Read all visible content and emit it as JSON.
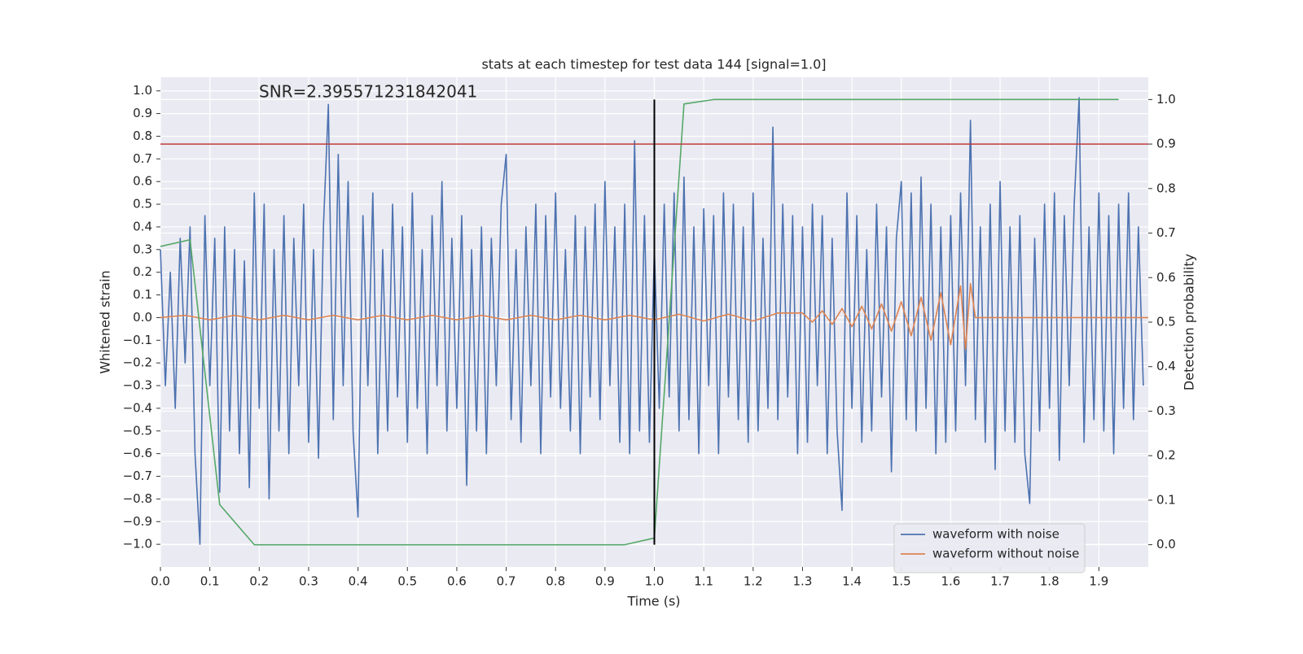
{
  "chart_data": {
    "type": "line",
    "title": "stats at each timestep for test data 144 [signal=1.0]",
    "annotation": "SNR=2.395571231842041",
    "xlabel": "Time (s)",
    "ylabel": "Whitened strain",
    "y2label": "Detection probability",
    "xlim": [
      0,
      2.0
    ],
    "ylim": [
      -1.1,
      1.06
    ],
    "y2lim": [
      -0.05,
      1.05
    ],
    "grid": true,
    "legend": "lower right",
    "xticks": [
      {
        "value": 0,
        "label": "0.0"
      },
      0.1,
      0.2,
      0.3,
      0.4,
      0.5,
      0.6,
      0.7,
      0.8,
      0.9,
      {
        "value": 1,
        "label": "1.0"
      },
      1.1,
      1.2,
      1.3,
      1.4,
      1.5,
      1.6,
      1.7,
      1.8,
      1.9
    ],
    "yticks": [
      {
        "value": -1,
        "label": "−1.0"
      },
      {
        "value": -0.9,
        "label": "−0.9"
      },
      {
        "value": -0.8,
        "label": "−0.8"
      },
      {
        "value": -0.7,
        "label": "−0.7"
      },
      {
        "value": -0.6,
        "label": "−0.6"
      },
      {
        "value": -0.5,
        "label": "−0.5"
      },
      {
        "value": -0.4,
        "label": "−0.4"
      },
      {
        "value": -0.3,
        "label": "−0.3"
      },
      {
        "value": -0.2,
        "label": "−0.2"
      },
      {
        "value": -0.1,
        "label": "−0.1"
      },
      {
        "value": 0,
        "label": "0.0"
      },
      0.1,
      0.2,
      0.3,
      0.4,
      0.5,
      0.6,
      0.7,
      0.8,
      0.9,
      {
        "value": 1,
        "label": "1.0"
      }
    ],
    "y2ticks": [
      {
        "value": 0,
        "label": "0.0"
      },
      0.1,
      0.2,
      0.3,
      0.4,
      0.5,
      0.6,
      0.7,
      0.8,
      0.9,
      {
        "value": 1,
        "label": "1.0"
      }
    ],
    "hline": {
      "y": 0.9,
      "axis": "y2",
      "color": "#c03a3a"
    },
    "vline": {
      "x": 1.0,
      "ymin": 0,
      "ymax": 1,
      "axis": "y2",
      "color": "#000000"
    },
    "series": [
      {
        "name": "waveform with noise",
        "color": "#4c72b0",
        "x": [
          0,
          0.01,
          0.02,
          0.03,
          0.04,
          0.05,
          0.06,
          0.07,
          0.08,
          0.09,
          0.1,
          0.11,
          0.12,
          0.13,
          0.14,
          0.15,
          0.16,
          0.17,
          0.18,
          0.19,
          0.2,
          0.21,
          0.22,
          0.23,
          0.24,
          0.25,
          0.26,
          0.27,
          0.28,
          0.29,
          0.3,
          0.31,
          0.32,
          0.33,
          0.34,
          0.35,
          0.36,
          0.37,
          0.38,
          0.39,
          0.4,
          0.41,
          0.42,
          0.43,
          0.44,
          0.45,
          0.46,
          0.47,
          0.48,
          0.49,
          0.5,
          0.51,
          0.52,
          0.53,
          0.54,
          0.55,
          0.56,
          0.57,
          0.58,
          0.59,
          0.6,
          0.61,
          0.62,
          0.63,
          0.64,
          0.65,
          0.66,
          0.67,
          0.68,
          0.69,
          0.7,
          0.71,
          0.72,
          0.73,
          0.74,
          0.75,
          0.76,
          0.77,
          0.78,
          0.79,
          0.8,
          0.81,
          0.82,
          0.83,
          0.84,
          0.85,
          0.86,
          0.87,
          0.88,
          0.89,
          0.9,
          0.91,
          0.92,
          0.93,
          0.94,
          0.95,
          0.96,
          0.97,
          0.98,
          0.99,
          1,
          1.01,
          1.02,
          1.03,
          1.04,
          1.05,
          1.06,
          1.07,
          1.08,
          1.09,
          1.1,
          1.11,
          1.12,
          1.13,
          1.14,
          1.15,
          1.16,
          1.17,
          1.18,
          1.19,
          1.2,
          1.21,
          1.22,
          1.23,
          1.24,
          1.25,
          1.26,
          1.27,
          1.28,
          1.29,
          1.3,
          1.31,
          1.32,
          1.33,
          1.34,
          1.35,
          1.36,
          1.37,
          1.38,
          1.39,
          1.4,
          1.41,
          1.42,
          1.43,
          1.44,
          1.45,
          1.46,
          1.47,
          1.48,
          1.49,
          1.5,
          1.51,
          1.52,
          1.53,
          1.54,
          1.55,
          1.56,
          1.57,
          1.58,
          1.59,
          1.6,
          1.61,
          1.62,
          1.63,
          1.64,
          1.65,
          1.66,
          1.67,
          1.68,
          1.69,
          1.7,
          1.71,
          1.72,
          1.73,
          1.74,
          1.75,
          1.76,
          1.77,
          1.78,
          1.79,
          1.8,
          1.81,
          1.82,
          1.83,
          1.84,
          1.85,
          1.86,
          1.87,
          1.88,
          1.89,
          1.9,
          1.91,
          1.92,
          1.93,
          1.94,
          1.95,
          1.96,
          1.97,
          1.98,
          1.99
        ],
        "values": [
          0.3,
          -0.3,
          0.2,
          -0.4,
          0.35,
          -0.2,
          0.4,
          -0.6,
          -1.0,
          0.45,
          -0.3,
          0.35,
          -0.77,
          0.4,
          -0.5,
          0.3,
          -0.6,
          0.25,
          -0.75,
          0.55,
          -0.4,
          0.5,
          -0.8,
          0.3,
          -0.5,
          0.45,
          -0.6,
          0.35,
          -0.3,
          0.5,
          -0.55,
          0.3,
          -0.62,
          0.4,
          0.94,
          -0.45,
          0.72,
          -0.3,
          0.6,
          -0.5,
          -0.88,
          0.45,
          -0.3,
          0.55,
          -0.6,
          0.3,
          -0.5,
          0.5,
          -0.35,
          0.4,
          -0.55,
          0.55,
          -0.4,
          0.3,
          -0.6,
          0.45,
          -0.3,
          0.6,
          -0.5,
          0.35,
          -0.4,
          0.45,
          -0.74,
          0.3,
          -0.5,
          0.4,
          -0.6,
          0.35,
          -0.3,
          0.5,
          0.72,
          -0.45,
          0.3,
          -0.55,
          0.4,
          -0.3,
          0.5,
          -0.6,
          0.45,
          -0.35,
          0.55,
          -0.4,
          0.3,
          -0.5,
          0.45,
          -0.6,
          0.4,
          -0.35,
          0.5,
          -0.45,
          0.6,
          -0.3,
          0.4,
          -0.55,
          0.5,
          -0.6,
          0.78,
          -0.5,
          0.45,
          -0.55,
          0.3,
          -0.4,
          0.5,
          -0.35,
          0.55,
          -0.5,
          0.62,
          -0.45,
          0.4,
          -0.6,
          0.48,
          -0.3,
          0.45,
          -0.6,
          0.55,
          -0.35,
          0.5,
          -0.45,
          0.4,
          -0.55,
          0.55,
          -0.5,
          0.35,
          -0.4,
          0.84,
          -0.45,
          0.5,
          -0.35,
          0.45,
          -0.6,
          0.4,
          -0.55,
          0.5,
          -0.3,
          0.45,
          -0.6,
          0.35,
          -0.5,
          -0.85,
          0.55,
          -0.4,
          0.45,
          -0.55,
          0.3,
          -0.5,
          0.5,
          -0.35,
          0.4,
          -0.68,
          0.35,
          0.6,
          -0.45,
          0.55,
          -0.5,
          0.62,
          -0.4,
          0.5,
          -0.6,
          0.4,
          -0.55,
          0.45,
          -0.5,
          0.55,
          -0.3,
          0.87,
          -0.45,
          0.4,
          -0.55,
          0.5,
          -0.67,
          0.6,
          -0.5,
          0.4,
          -0.55,
          0.45,
          -0.6,
          -0.82,
          0.35,
          -0.5,
          0.5,
          -0.4,
          0.55,
          -0.63,
          0.45,
          -0.3,
          0.5,
          0.97,
          -0.55,
          0.4,
          -0.45,
          0.55,
          -0.5,
          0.45,
          -0.6,
          0.5,
          -0.4,
          0.55,
          -0.45,
          0.4,
          -0.3
        ]
      },
      {
        "name": "waveform without noise",
        "color": "#dd8452",
        "x": [
          0,
          0.05,
          0.1,
          0.15,
          0.2,
          0.25,
          0.3,
          0.35,
          0.4,
          0.45,
          0.5,
          0.55,
          0.6,
          0.65,
          0.7,
          0.75,
          0.8,
          0.85,
          0.9,
          0.95,
          1,
          1.05,
          1.1,
          1.15,
          1.2,
          1.25,
          1.3,
          1.32,
          1.34,
          1.36,
          1.38,
          1.4,
          1.42,
          1.44,
          1.46,
          1.48,
          1.5,
          1.52,
          1.54,
          1.56,
          1.58,
          1.6,
          1.62,
          1.63,
          1.64,
          1.65,
          2.0
        ],
        "values": [
          0,
          0.01,
          -0.01,
          0.01,
          -0.01,
          0.01,
          -0.01,
          0.01,
          -0.01,
          0.01,
          -0.01,
          0.01,
          -0.01,
          0.01,
          -0.01,
          0.01,
          -0.01,
          0.01,
          -0.01,
          0.01,
          -0.01,
          0.015,
          -0.015,
          0.015,
          -0.015,
          0.02,
          0.02,
          -0.02,
          0.03,
          -0.03,
          0.04,
          -0.04,
          0.05,
          -0.05,
          0.06,
          -0.06,
          0.07,
          -0.08,
          0.09,
          -0.1,
          0.11,
          -0.12,
          0.14,
          -0.14,
          0.15,
          0,
          0
        ]
      },
      {
        "color": "#55a868",
        "axis": "y2",
        "x": [
          0,
          0.06,
          0.12,
          0.19,
          0.94,
          1.0,
          1.06,
          1.12,
          1.94
        ],
        "values": [
          0.67,
          0.685,
          0.09,
          0,
          0,
          0.015,
          0.99,
          1.0,
          1.0
        ]
      }
    ]
  }
}
